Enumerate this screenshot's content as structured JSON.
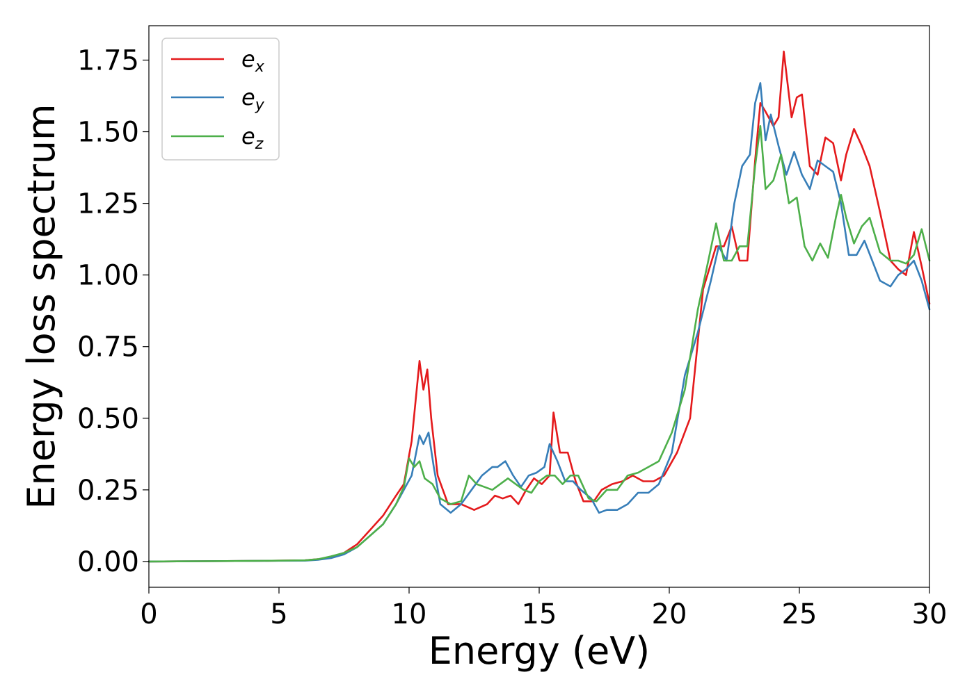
{
  "chart_data": {
    "type": "line",
    "xlabel": "Energy (eV)",
    "ylabel": "Energy loss spectrum",
    "xlim": [
      0,
      30
    ],
    "ylim": [
      -0.09,
      1.87
    ],
    "xticks": [
      0,
      5,
      10,
      15,
      20,
      25,
      30
    ],
    "xtick_labels": [
      "0",
      "5",
      "10",
      "15",
      "20",
      "25",
      "30"
    ],
    "yticks": [
      0.0,
      0.25,
      0.5,
      0.75,
      1.0,
      1.25,
      1.5,
      1.75
    ],
    "ytick_labels": [
      "0.00",
      "0.25",
      "0.50",
      "0.75",
      "1.00",
      "1.25",
      "1.50",
      "1.75"
    ],
    "grid": false,
    "legend_position": "upper-left",
    "series": [
      {
        "name": "e_x",
        "legend_base": "e",
        "legend_sub": "x",
        "color": "#e41a1c",
        "x": [
          0,
          2,
          4,
          6,
          6.5,
          7,
          7.5,
          8,
          8.5,
          9,
          9.5,
          9.8,
          10.1,
          10.4,
          10.55,
          10.7,
          10.85,
          11.1,
          11.5,
          12,
          12.5,
          13,
          13.3,
          13.6,
          13.9,
          14.2,
          14.5,
          14.8,
          15.1,
          15.4,
          15.55,
          15.8,
          16.1,
          16.4,
          16.7,
          17.1,
          17.4,
          17.8,
          18.2,
          18.6,
          19,
          19.4,
          19.8,
          20.3,
          20.8,
          21.3,
          21.8,
          22.1,
          22.4,
          22.7,
          23,
          23.3,
          23.5,
          23.7,
          24,
          24.2,
          24.4,
          24.7,
          24.9,
          25.1,
          25.4,
          25.7,
          26,
          26.3,
          26.6,
          26.8,
          27.1,
          27.4,
          27.7,
          28.1,
          28.5,
          28.8,
          29.1,
          29.4,
          29.7,
          30
        ],
        "y": [
          0,
          0.001,
          0.002,
          0.004,
          0.008,
          0.015,
          0.03,
          0.06,
          0.11,
          0.16,
          0.23,
          0.27,
          0.42,
          0.7,
          0.6,
          0.67,
          0.5,
          0.3,
          0.2,
          0.2,
          0.18,
          0.2,
          0.23,
          0.22,
          0.23,
          0.2,
          0.25,
          0.29,
          0.27,
          0.3,
          0.52,
          0.38,
          0.38,
          0.28,
          0.21,
          0.21,
          0.25,
          0.27,
          0.28,
          0.3,
          0.28,
          0.28,
          0.3,
          0.38,
          0.5,
          0.95,
          1.1,
          1.1,
          1.17,
          1.05,
          1.05,
          1.4,
          1.6,
          1.57,
          1.52,
          1.55,
          1.78,
          1.55,
          1.62,
          1.63,
          1.38,
          1.35,
          1.48,
          1.46,
          1.33,
          1.42,
          1.51,
          1.45,
          1.38,
          1.22,
          1.05,
          1.02,
          1.0,
          1.15,
          1.03,
          0.9
        ]
      },
      {
        "name": "e_y",
        "legend_base": "e",
        "legend_sub": "y",
        "color": "#377eb8",
        "x": [
          0,
          2,
          4,
          6,
          6.5,
          7,
          7.5,
          8,
          8.5,
          9,
          9.5,
          9.8,
          10.1,
          10.4,
          10.55,
          10.75,
          10.95,
          11.2,
          11.6,
          12,
          12.4,
          12.8,
          13.2,
          13.4,
          13.7,
          14,
          14.3,
          14.6,
          14.9,
          15.2,
          15.4,
          15.7,
          16,
          16.3,
          16.6,
          17,
          17.3,
          17.6,
          18,
          18.4,
          18.8,
          19.2,
          19.6,
          20.1,
          20.6,
          21.1,
          21.6,
          21.9,
          22.2,
          22.5,
          22.8,
          23.1,
          23.3,
          23.5,
          23.7,
          23.9,
          24.2,
          24.5,
          24.8,
          25.1,
          25.4,
          25.7,
          26,
          26.3,
          26.6,
          26.9,
          27.2,
          27.5,
          27.8,
          28.1,
          28.5,
          28.8,
          29.1,
          29.4,
          29.7,
          30
        ],
        "y": [
          0,
          0.001,
          0.002,
          0.003,
          0.006,
          0.012,
          0.025,
          0.05,
          0.09,
          0.13,
          0.2,
          0.25,
          0.3,
          0.44,
          0.41,
          0.45,
          0.33,
          0.2,
          0.17,
          0.2,
          0.25,
          0.3,
          0.33,
          0.33,
          0.35,
          0.3,
          0.26,
          0.3,
          0.31,
          0.33,
          0.41,
          0.35,
          0.28,
          0.28,
          0.25,
          0.22,
          0.17,
          0.18,
          0.18,
          0.2,
          0.24,
          0.24,
          0.27,
          0.38,
          0.65,
          0.8,
          0.98,
          1.1,
          1.05,
          1.25,
          1.38,
          1.42,
          1.6,
          1.67,
          1.47,
          1.56,
          1.45,
          1.35,
          1.43,
          1.35,
          1.3,
          1.4,
          1.38,
          1.36,
          1.25,
          1.07,
          1.07,
          1.12,
          1.05,
          0.98,
          0.96,
          1.0,
          1.02,
          1.05,
          0.98,
          0.88
        ]
      },
      {
        "name": "e_z",
        "legend_base": "e",
        "legend_sub": "z",
        "color": "#4daf4a",
        "x": [
          0,
          2,
          4,
          6,
          6.5,
          7,
          7.5,
          8,
          8.5,
          9,
          9.5,
          9.8,
          10.0,
          10.2,
          10.4,
          10.6,
          10.9,
          11.2,
          11.6,
          12,
          12.3,
          12.6,
          12.9,
          13.2,
          13.5,
          13.8,
          14.1,
          14.4,
          14.7,
          15,
          15.3,
          15.6,
          15.9,
          16.2,
          16.5,
          16.9,
          17.2,
          17.6,
          18,
          18.4,
          18.8,
          19.2,
          19.6,
          20.1,
          20.6,
          21.1,
          21.5,
          21.8,
          22.1,
          22.4,
          22.7,
          23,
          23.3,
          23.5,
          23.7,
          24,
          24.3,
          24.6,
          24.9,
          25.2,
          25.5,
          25.8,
          26.1,
          26.4,
          26.6,
          26.8,
          27.1,
          27.4,
          27.7,
          28.1,
          28.5,
          28.8,
          29.1,
          29.4,
          29.7,
          30
        ],
        "y": [
          0,
          0.001,
          0.002,
          0.004,
          0.008,
          0.018,
          0.03,
          0.05,
          0.09,
          0.13,
          0.2,
          0.26,
          0.36,
          0.33,
          0.35,
          0.29,
          0.27,
          0.22,
          0.2,
          0.21,
          0.3,
          0.27,
          0.26,
          0.25,
          0.27,
          0.29,
          0.27,
          0.25,
          0.24,
          0.28,
          0.3,
          0.3,
          0.27,
          0.3,
          0.3,
          0.22,
          0.21,
          0.25,
          0.25,
          0.3,
          0.31,
          0.33,
          0.35,
          0.45,
          0.6,
          0.88,
          1.05,
          1.18,
          1.05,
          1.05,
          1.1,
          1.1,
          1.38,
          1.52,
          1.3,
          1.33,
          1.42,
          1.25,
          1.27,
          1.1,
          1.05,
          1.11,
          1.06,
          1.2,
          1.28,
          1.2,
          1.11,
          1.17,
          1.2,
          1.08,
          1.05,
          1.05,
          1.04,
          1.07,
          1.16,
          1.05
        ]
      }
    ]
  }
}
